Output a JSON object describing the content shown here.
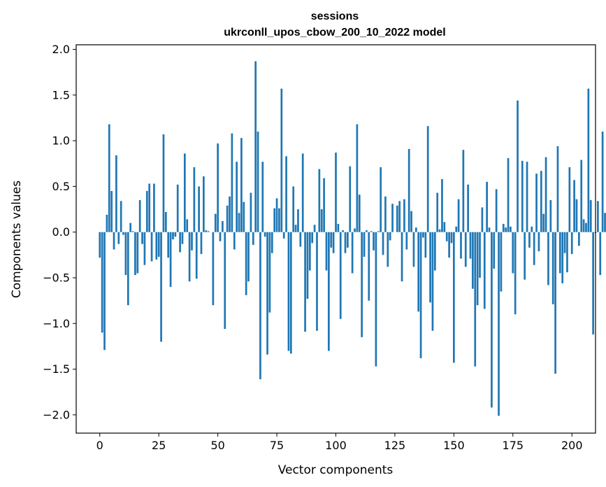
{
  "chart_data": {
    "type": "bar",
    "title": "sessions",
    "subtitle": "ukrconll_upos_cbow_200_10_2022 model",
    "xlabel": "Vector components",
    "ylabel": "Components values",
    "xlim": [
      -10,
      210
    ],
    "ylim": [
      -2.2,
      2.05
    ],
    "xticks": [
      0,
      25,
      50,
      75,
      100,
      125,
      150,
      175,
      200
    ],
    "yticks": [
      -2.0,
      -1.5,
      -1.0,
      -0.5,
      0.0,
      0.5,
      1.0,
      1.5,
      2.0
    ],
    "ytick_labels": [
      "−2.0",
      "−1.5",
      "−1.0",
      "−0.5",
      "0.0",
      "0.5",
      "1.0",
      "1.5",
      "2.0"
    ],
    "bar_color": "#1f77b4",
    "values": [
      -0.28,
      -1.1,
      -1.29,
      0.19,
      1.18,
      0.45,
      -0.19,
      0.84,
      -0.13,
      0.34,
      -0.03,
      -0.47,
      -0.8,
      0.1,
      0.01,
      -0.47,
      -0.45,
      0.35,
      -0.13,
      -0.36,
      0.45,
      0.53,
      -0.32,
      0.53,
      -0.3,
      -0.27,
      -1.2,
      1.07,
      0.22,
      -0.28,
      -0.6,
      -0.08,
      -0.05,
      0.52,
      -0.22,
      -0.13,
      0.86,
      0.14,
      -0.54,
      -0.2,
      0.71,
      -0.51,
      0.5,
      -0.24,
      0.61,
      0.02,
      0.01,
      0.0,
      -0.8,
      0.2,
      0.97,
      -0.1,
      0.12,
      -1.06,
      0.29,
      0.39,
      1.08,
      -0.19,
      0.77,
      0.21,
      1.03,
      0.33,
      -0.69,
      -0.54,
      0.43,
      -0.14,
      1.87,
      1.1,
      -1.61,
      0.77,
      -0.05,
      -1.34,
      -0.88,
      -0.23,
      0.26,
      0.37,
      0.26,
      1.57,
      -0.07,
      0.83,
      -1.3,
      -1.33,
      0.5,
      0.08,
      0.25,
      -0.16,
      0.86,
      -1.09,
      -0.73,
      -0.42,
      -0.12,
      0.08,
      -1.08,
      0.69,
      0.25,
      0.59,
      -0.42,
      -1.3,
      -0.17,
      -0.23,
      0.87,
      0.09,
      -0.95,
      0.02,
      -0.23,
      -0.17,
      0.72,
      -0.45,
      0.04,
      1.18,
      0.41,
      -1.15,
      -0.27,
      0.02,
      -0.75,
      0.01,
      -0.2,
      -1.47,
      0.01,
      0.71,
      -0.25,
      0.39,
      -0.38,
      -0.09,
      0.31,
      0.0,
      0.29,
      0.34,
      -0.54,
      0.36,
      -0.19,
      0.91,
      0.23,
      -0.38,
      0.05,
      -0.87,
      -1.38,
      -0.06,
      -0.28,
      1.16,
      -0.77,
      -1.08,
      -0.42,
      0.43,
      0.03,
      0.58,
      0.11,
      -0.1,
      -0.28,
      -0.12,
      -1.43,
      0.06,
      0.36,
      -0.29,
      0.9,
      -0.38,
      0.52,
      -0.29,
      -0.62,
      -1.47,
      -0.8,
      -0.5,
      0.27,
      -0.84,
      0.55,
      0.05,
      -1.92,
      -0.4,
      0.47,
      -2.01,
      -0.65,
      0.09,
      0.05,
      0.81,
      0.06,
      -0.45,
      -0.9,
      1.44,
      0.0,
      0.78,
      -0.52,
      0.77,
      -0.17,
      0.06,
      -0.36,
      0.64,
      -0.21,
      0.67,
      0.2,
      0.82,
      -0.58,
      0.35,
      -0.79,
      -1.55,
      0.94,
      -0.45,
      -0.56,
      -0.23,
      -0.44,
      0.71,
      -0.24,
      0.57,
      0.36,
      -0.15,
      0.79,
      0.14,
      0.1,
      1.57,
      0.35,
      -1.12,
      -0.01,
      0.34,
      -0.47,
      1.1,
      0.21
    ]
  }
}
